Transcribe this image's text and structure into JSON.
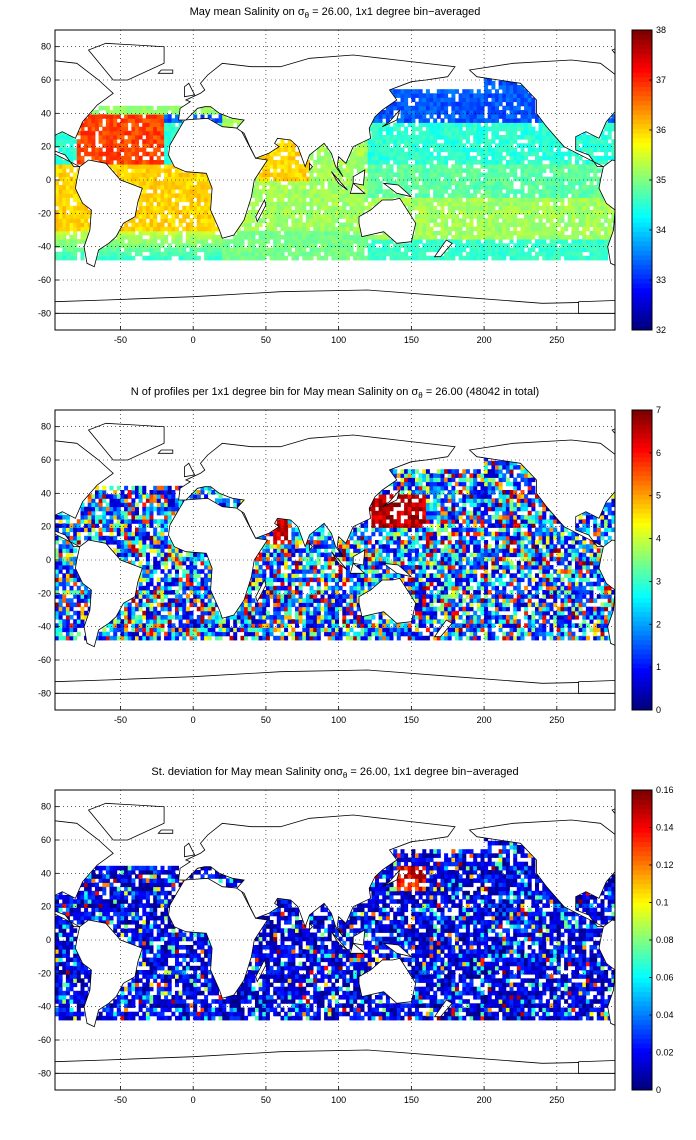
{
  "panels": [
    {
      "title_pre": "May mean Salinity on σ",
      "title_sub": "θ",
      "title_post": " = 26.00, 1x1 degree bin−averaged",
      "colorbar": {
        "ticks": [
          "32",
          "33",
          "34",
          "35",
          "36",
          "37",
          "38"
        ],
        "min": 32,
        "max": 38
      }
    },
    {
      "title_pre": "N of profiles per 1x1 degree bin for May mean Salinity on σ",
      "title_sub": "θ",
      "title_post": " = 26.00 (48042 in total)",
      "colorbar": {
        "ticks": [
          "0",
          "1",
          "2",
          "3",
          "4",
          "5",
          "6",
          "7"
        ],
        "min": 0,
        "max": 7
      }
    },
    {
      "title_pre": "St. deviation for May mean Salinity onσ",
      "title_sub": "θ",
      "title_post": " = 26.00, 1x1 degree bin−averaged",
      "colorbar": {
        "ticks": [
          "0",
          "0.02",
          "0.04",
          "0.06",
          "0.08",
          "0.1",
          "0.12",
          "0.14",
          "0.16"
        ],
        "min": 0,
        "max": 0.16
      }
    }
  ],
  "axes": {
    "xticks": [
      "-50",
      "0",
      "50",
      "100",
      "150",
      "200",
      "250"
    ],
    "yticks": [
      "80",
      "60",
      "40",
      "20",
      "0",
      "-20",
      "-40",
      "-60",
      "-80"
    ],
    "xlim": [
      -95,
      290
    ],
    "ylim": [
      -90,
      90
    ]
  },
  "chart_data": [
    {
      "type": "heatmap",
      "title": "May mean Salinity on σθ = 26.00, 1x1 degree bin−averaged",
      "xlim": [
        -95,
        290
      ],
      "ylim": [
        -90,
        90
      ],
      "colorbar_range": [
        32,
        38
      ],
      "grid": true
    },
    {
      "type": "heatmap",
      "title": "N of profiles per 1x1 degree bin for May mean Salinity on σθ = 26.00 (48042 in total)",
      "xlim": [
        -95,
        290
      ],
      "ylim": [
        -90,
        90
      ],
      "colorbar_range": [
        0,
        7
      ],
      "grid": true
    },
    {
      "type": "heatmap",
      "title": "St. deviation for May mean Salinity onσθ = 26.00, 1x1 degree bin−averaged",
      "xlim": [
        -95,
        290
      ],
      "ylim": [
        -90,
        90
      ],
      "colorbar_range": [
        0,
        0.16
      ],
      "grid": true
    }
  ]
}
